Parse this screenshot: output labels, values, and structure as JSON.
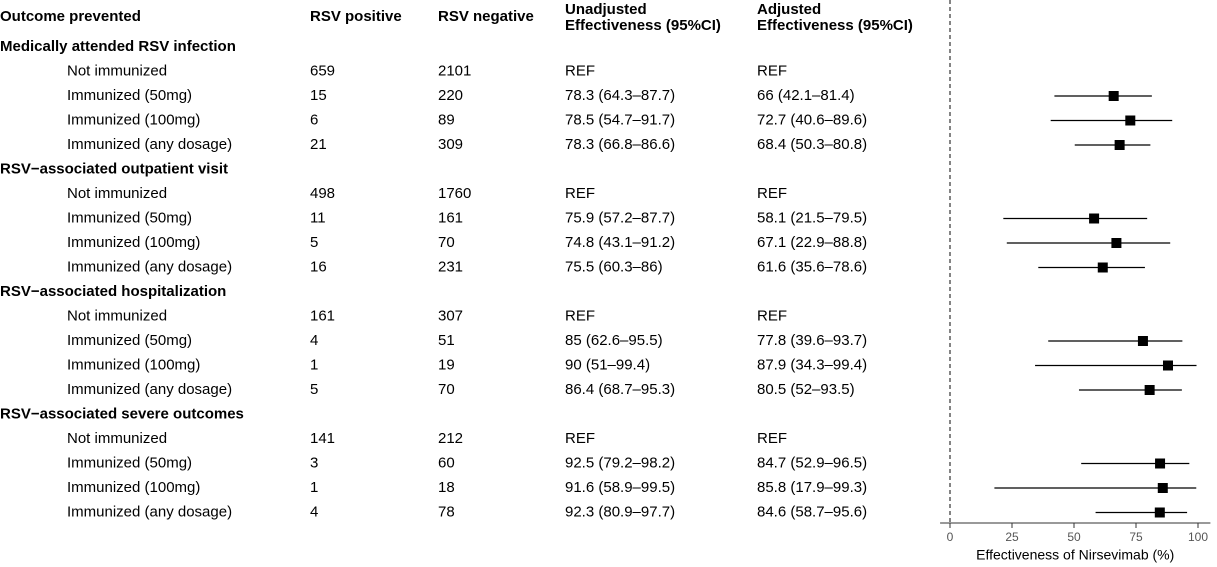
{
  "chart_data": {
    "type": "forest",
    "columns": [
      "Outcome prevented",
      "RSV positive",
      "RSV negative",
      [
        "Unadjusted",
        "Effectiveness (95%CI)"
      ],
      [
        "Adjusted",
        "Effectiveness (95%CI)"
      ]
    ],
    "groups": [
      {
        "title": "Medically attended RSV infection",
        "rows": [
          {
            "label": "Not immunized",
            "rsv_positive": 659,
            "rsv_negative": 2101,
            "unadjusted": "REF",
            "adjusted": "REF"
          },
          {
            "label": "Immunized (50mg)",
            "rsv_positive": 15,
            "rsv_negative": 220,
            "unadjusted": "78.3 (64.3–87.7)",
            "adjusted": "66 (42.1–81.4)",
            "estimate": 66,
            "lower": 42.1,
            "upper": 81.4
          },
          {
            "label": "Immunized (100mg)",
            "rsv_positive": 6,
            "rsv_negative": 89,
            "unadjusted": "78.5 (54.7–91.7)",
            "adjusted": "72.7 (40.6–89.6)",
            "estimate": 72.7,
            "lower": 40.6,
            "upper": 89.6
          },
          {
            "label": "Immunized (any dosage)",
            "rsv_positive": 21,
            "rsv_negative": 309,
            "unadjusted": "78.3 (66.8–86.6)",
            "adjusted": "68.4 (50.3–80.8)",
            "estimate": 68.4,
            "lower": 50.3,
            "upper": 80.8
          }
        ]
      },
      {
        "title": "RSV−associated outpatient visit",
        "rows": [
          {
            "label": "Not immunized",
            "rsv_positive": 498,
            "rsv_negative": 1760,
            "unadjusted": "REF",
            "adjusted": "REF"
          },
          {
            "label": "Immunized (50mg)",
            "rsv_positive": 11,
            "rsv_negative": 161,
            "unadjusted": "75.9 (57.2–87.7)",
            "adjusted": "58.1 (21.5–79.5)",
            "estimate": 58.1,
            "lower": 21.5,
            "upper": 79.5
          },
          {
            "label": "Immunized (100mg)",
            "rsv_positive": 5,
            "rsv_negative": 70,
            "unadjusted": "74.8 (43.1–91.2)",
            "adjusted": "67.1 (22.9–88.8)",
            "estimate": 67.1,
            "lower": 22.9,
            "upper": 88.8
          },
          {
            "label": "Immunized (any dosage)",
            "rsv_positive": 16,
            "rsv_negative": 231,
            "unadjusted": "75.5 (60.3–86)",
            "adjusted": "61.6 (35.6–78.6)",
            "estimate": 61.6,
            "lower": 35.6,
            "upper": 78.6
          }
        ]
      },
      {
        "title": "RSV−associated hospitalization",
        "rows": [
          {
            "label": "Not immunized",
            "rsv_positive": 161,
            "rsv_negative": 307,
            "unadjusted": "REF",
            "adjusted": "REF"
          },
          {
            "label": "Immunized (50mg)",
            "rsv_positive": 4,
            "rsv_negative": 51,
            "unadjusted": "85 (62.6–95.5)",
            "adjusted": "77.8 (39.6–93.7)",
            "estimate": 77.8,
            "lower": 39.6,
            "upper": 93.7
          },
          {
            "label": "Immunized (100mg)",
            "rsv_positive": 1,
            "rsv_negative": 19,
            "unadjusted": "90 (51–99.4)",
            "adjusted": "87.9 (34.3–99.4)",
            "estimate": 87.9,
            "lower": 34.3,
            "upper": 99.4
          },
          {
            "label": "Immunized (any dosage)",
            "rsv_positive": 5,
            "rsv_negative": 70,
            "unadjusted": "86.4 (68.7–95.3)",
            "adjusted": "80.5 (52–93.5)",
            "estimate": 80.5,
            "lower": 52,
            "upper": 93.5
          }
        ]
      },
      {
        "title": "RSV−associated severe outcomes",
        "rows": [
          {
            "label": "Not immunized",
            "rsv_positive": 141,
            "rsv_negative": 212,
            "unadjusted": "REF",
            "adjusted": "REF"
          },
          {
            "label": "Immunized (50mg)",
            "rsv_positive": 3,
            "rsv_negative": 60,
            "unadjusted": "92.5 (79.2–98.2)",
            "adjusted": "84.7 (52.9–96.5)",
            "estimate": 84.7,
            "lower": 52.9,
            "upper": 96.5
          },
          {
            "label": "Immunized (100mg)",
            "rsv_positive": 1,
            "rsv_negative": 18,
            "unadjusted": "91.6 (58.9–99.5)",
            "adjusted": "85.8 (17.9–99.3)",
            "estimate": 85.8,
            "lower": 17.9,
            "upper": 99.3
          },
          {
            "label": "Immunized (any dosage)",
            "rsv_positive": 4,
            "rsv_negative": 78,
            "unadjusted": "92.3 (80.9–97.7)",
            "adjusted": "84.6 (58.7–95.6)",
            "estimate": 84.6,
            "lower": 58.7,
            "upper": 95.6
          }
        ]
      }
    ],
    "xlabel": "Effectiveness of Nirsevimab (%)",
    "xlim": [
      -4,
      105
    ],
    "xticks": [
      0,
      25,
      50,
      75,
      100
    ],
    "reference_line": 0,
    "color": "#000000"
  }
}
